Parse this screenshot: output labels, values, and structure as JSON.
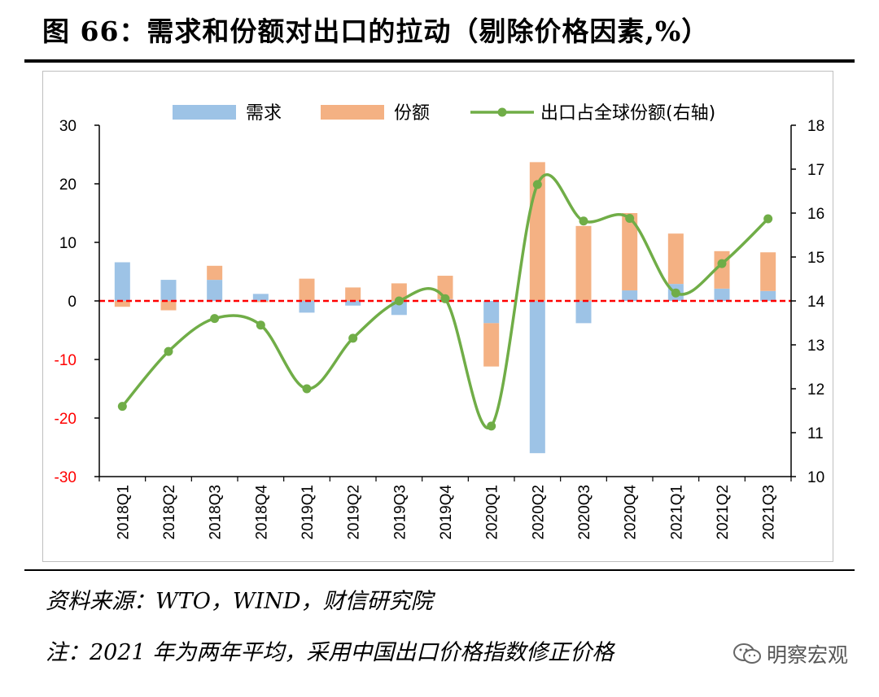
{
  "header": {
    "title": "图 66：需求和份额对出口的拉动（剔除价格因素,%）"
  },
  "notes": {
    "source": "资料来源：WTO，WIND，财信研究院",
    "note": "注：2021 年为两年平均，采用中国出口价格指数修正价格"
  },
  "watermark": {
    "text": "明察宏观",
    "icon": "wechat-icon"
  },
  "colors": {
    "demand": "#9dc3e6",
    "share": "#f4b183",
    "line": "#70ad47",
    "zero_line": "#ff0000",
    "neg_tick": "#ff0000"
  },
  "chart_data": {
    "type": "bar",
    "categories": [
      "2018Q1",
      "2018Q2",
      "2018Q3",
      "2018Q4",
      "2019Q1",
      "2019Q2",
      "2019Q3",
      "2019Q4",
      "2020Q1",
      "2020Q2",
      "2020Q3",
      "2020Q4",
      "2021Q1",
      "2021Q2",
      "2021Q3"
    ],
    "series": [
      {
        "name": "需求",
        "type": "bar",
        "axis": "left",
        "values": [
          6.6,
          3.6,
          3.6,
          1.2,
          -2.0,
          -0.8,
          -2.4,
          0.3,
          -3.8,
          -26.0,
          -3.8,
          1.8,
          2.9,
          2.1,
          1.7
        ]
      },
      {
        "name": "份额",
        "type": "bar",
        "axis": "left",
        "values": [
          -1.0,
          -1.6,
          2.4,
          -0.2,
          3.8,
          2.3,
          3.0,
          4.0,
          -7.4,
          23.7,
          12.8,
          13.2,
          8.6,
          6.4,
          6.6
        ]
      },
      {
        "name": "出口占全球份额(右轴)",
        "type": "line",
        "axis": "right",
        "values": [
          11.6,
          12.85,
          13.6,
          13.45,
          12.0,
          13.15,
          14.0,
          14.05,
          11.15,
          16.65,
          15.82,
          15.88,
          14.18,
          14.85,
          15.87
        ]
      }
    ],
    "y_left": {
      "min": -30,
      "max": 30,
      "ticks": [
        30,
        20,
        10,
        0,
        -10,
        -20,
        -30
      ]
    },
    "y_right": {
      "min": 10,
      "max": 18,
      "ticks": [
        18,
        17,
        16,
        15,
        14,
        13,
        12,
        11,
        10
      ]
    },
    "legend_position": "top",
    "zero_line": "dashed red at 0"
  }
}
